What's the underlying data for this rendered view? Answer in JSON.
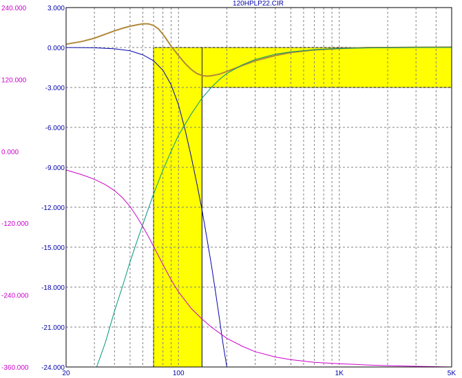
{
  "chart_data": {
    "type": "line",
    "title": "120HPLP22.CIR",
    "x_scale": "log",
    "xlim": [
      20,
      5000
    ],
    "x_ticks": [
      {
        "value": 20,
        "label": "20"
      },
      {
        "value": 100,
        "label": "100"
      },
      {
        "value": 1000,
        "label": "1K"
      },
      {
        "value": 5000,
        "label": "5K"
      }
    ],
    "y_left": {
      "ylim": [
        -24,
        3
      ],
      "ticks": [
        "3.000",
        "0.000",
        "-3.000",
        "-6.000",
        "-9.000",
        "-12.000",
        "-15.000",
        "-18.000",
        "-21.000",
        "-24.000"
      ],
      "color": "#0000aa"
    },
    "y_right_phase": {
      "ylim": [
        -360,
        240
      ],
      "ticks": [
        "240.000",
        "120.000",
        "0.000",
        "-120.000",
        "-240.000",
        "-360.000"
      ],
      "color": "#cc00cc"
    },
    "grid": true,
    "highlight_regions": [
      {
        "x": [
          70,
          1000000
        ],
        "y": [
          -3,
          0
        ],
        "color": "#ffff00"
      },
      {
        "x": [
          70,
          140
        ],
        "y": [
          -24,
          0
        ],
        "color": "#ffff00"
      }
    ],
    "series": [
      {
        "color": "#b08838",
        "points": [
          [
            20,
            0.25
          ],
          [
            25,
            0.45
          ],
          [
            30,
            0.7
          ],
          [
            35,
            1.0
          ],
          [
            40,
            1.25
          ],
          [
            45,
            1.45
          ],
          [
            50,
            1.6
          ],
          [
            55,
            1.7
          ],
          [
            60,
            1.78
          ],
          [
            65,
            1.78
          ],
          [
            70,
            1.65
          ],
          [
            75,
            1.4
          ],
          [
            80,
            1.0
          ],
          [
            85,
            0.55
          ],
          [
            90,
            0.1
          ],
          [
            100,
            -0.6
          ],
          [
            110,
            -1.2
          ],
          [
            120,
            -1.65
          ],
          [
            130,
            -1.95
          ],
          [
            140,
            -2.1
          ],
          [
            150,
            -2.15
          ],
          [
            160,
            -2.12
          ],
          [
            180,
            -2.0
          ],
          [
            200,
            -1.8
          ],
          [
            250,
            -1.35
          ],
          [
            300,
            -1.0
          ],
          [
            400,
            -0.6
          ],
          [
            500,
            -0.38
          ],
          [
            700,
            -0.18
          ],
          [
            1000,
            -0.07
          ],
          [
            1500,
            0.0
          ],
          [
            2000,
            0.0
          ],
          [
            3000,
            0.02
          ],
          [
            5000,
            0.03
          ]
        ]
      },
      {
        "color": "#0000aa",
        "points": [
          [
            20,
            0
          ],
          [
            30,
            -0.02
          ],
          [
            40,
            -0.1
          ],
          [
            50,
            -0.25
          ],
          [
            60,
            -0.55
          ],
          [
            70,
            -1.0
          ],
          [
            80,
            -1.7
          ],
          [
            90,
            -2.8
          ],
          [
            100,
            -4.3
          ],
          [
            110,
            -6.2
          ],
          [
            120,
            -8.2
          ],
          [
            130,
            -10.2
          ],
          [
            140,
            -12.2
          ],
          [
            150,
            -14.3
          ],
          [
            160,
            -16.3
          ],
          [
            170,
            -18.4
          ],
          [
            180,
            -20.4
          ],
          [
            190,
            -22.4
          ],
          [
            200,
            -24.0
          ]
        ]
      },
      {
        "color": "#009977",
        "points": [
          [
            31,
            -24
          ],
          [
            35,
            -22.2
          ],
          [
            40,
            -19.8
          ],
          [
            45,
            -17.9
          ],
          [
            50,
            -16.1
          ],
          [
            55,
            -14.6
          ],
          [
            60,
            -13.3
          ],
          [
            65,
            -12.1
          ],
          [
            70,
            -11.0
          ],
          [
            80,
            -9.2
          ],
          [
            90,
            -7.8
          ],
          [
            100,
            -6.6
          ],
          [
            120,
            -5.0
          ],
          [
            140,
            -3.8
          ],
          [
            160,
            -3.0
          ],
          [
            180,
            -2.4
          ],
          [
            200,
            -1.95
          ],
          [
            250,
            -1.3
          ],
          [
            300,
            -0.9
          ],
          [
            400,
            -0.5
          ],
          [
            500,
            -0.32
          ],
          [
            700,
            -0.16
          ],
          [
            1000,
            -0.08
          ],
          [
            1500,
            -0.03
          ],
          [
            2000,
            -0.01
          ],
          [
            3000,
            0.0
          ],
          [
            5000,
            0.0
          ]
        ]
      },
      {
        "color": "#cc00cc",
        "points": [
          [
            20,
            -9.2
          ],
          [
            25,
            -9.55
          ],
          [
            30,
            -9.9
          ],
          [
            35,
            -10.3
          ],
          [
            40,
            -10.75
          ],
          [
            45,
            -11.3
          ],
          [
            50,
            -11.95
          ],
          [
            55,
            -12.7
          ],
          [
            60,
            -13.45
          ],
          [
            65,
            -14.2
          ],
          [
            70,
            -14.95
          ],
          [
            80,
            -16.3
          ],
          [
            90,
            -17.45
          ],
          [
            100,
            -18.35
          ],
          [
            120,
            -19.6
          ],
          [
            140,
            -20.4
          ],
          [
            160,
            -21.0
          ],
          [
            180,
            -21.45
          ],
          [
            200,
            -21.85
          ],
          [
            250,
            -22.45
          ],
          [
            300,
            -22.85
          ],
          [
            400,
            -23.25
          ],
          [
            500,
            -23.45
          ],
          [
            700,
            -23.65
          ],
          [
            1000,
            -23.75
          ],
          [
            1500,
            -23.85
          ],
          [
            2000,
            -23.9
          ],
          [
            3000,
            -23.95
          ],
          [
            5000,
            -24.0
          ]
        ]
      }
    ]
  }
}
